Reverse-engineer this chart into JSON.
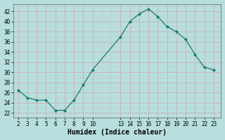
{
  "x": [
    2,
    3,
    4,
    5,
    6,
    7,
    8,
    9,
    10,
    13,
    14,
    15,
    16,
    17,
    18,
    19,
    20,
    21,
    22,
    23
  ],
  "y": [
    26.5,
    25,
    24.5,
    24.5,
    22.5,
    22.5,
    24.5,
    27.5,
    30.5,
    37,
    40,
    41.5,
    42.5,
    41,
    39,
    38,
    36.5,
    33.5,
    31,
    30.5
  ],
  "line_color": "#1a7a6e",
  "marker_color": "#1a7a6e",
  "bg_color": "#b8dede",
  "grid_major_color": "#c8a8a8",
  "grid_minor_color": "#d0c0c0",
  "xlabel": "Humidex (Indice chaleur)",
  "xticks": [
    2,
    3,
    4,
    5,
    6,
    7,
    8,
    9,
    10,
    13,
    14,
    15,
    16,
    17,
    18,
    19,
    20,
    21,
    22,
    23
  ],
  "yticks": [
    22,
    24,
    26,
    28,
    30,
    32,
    34,
    36,
    38,
    40,
    42
  ],
  "ylim": [
    21.0,
    43.5
  ],
  "xlim": [
    1.5,
    23.8
  ]
}
